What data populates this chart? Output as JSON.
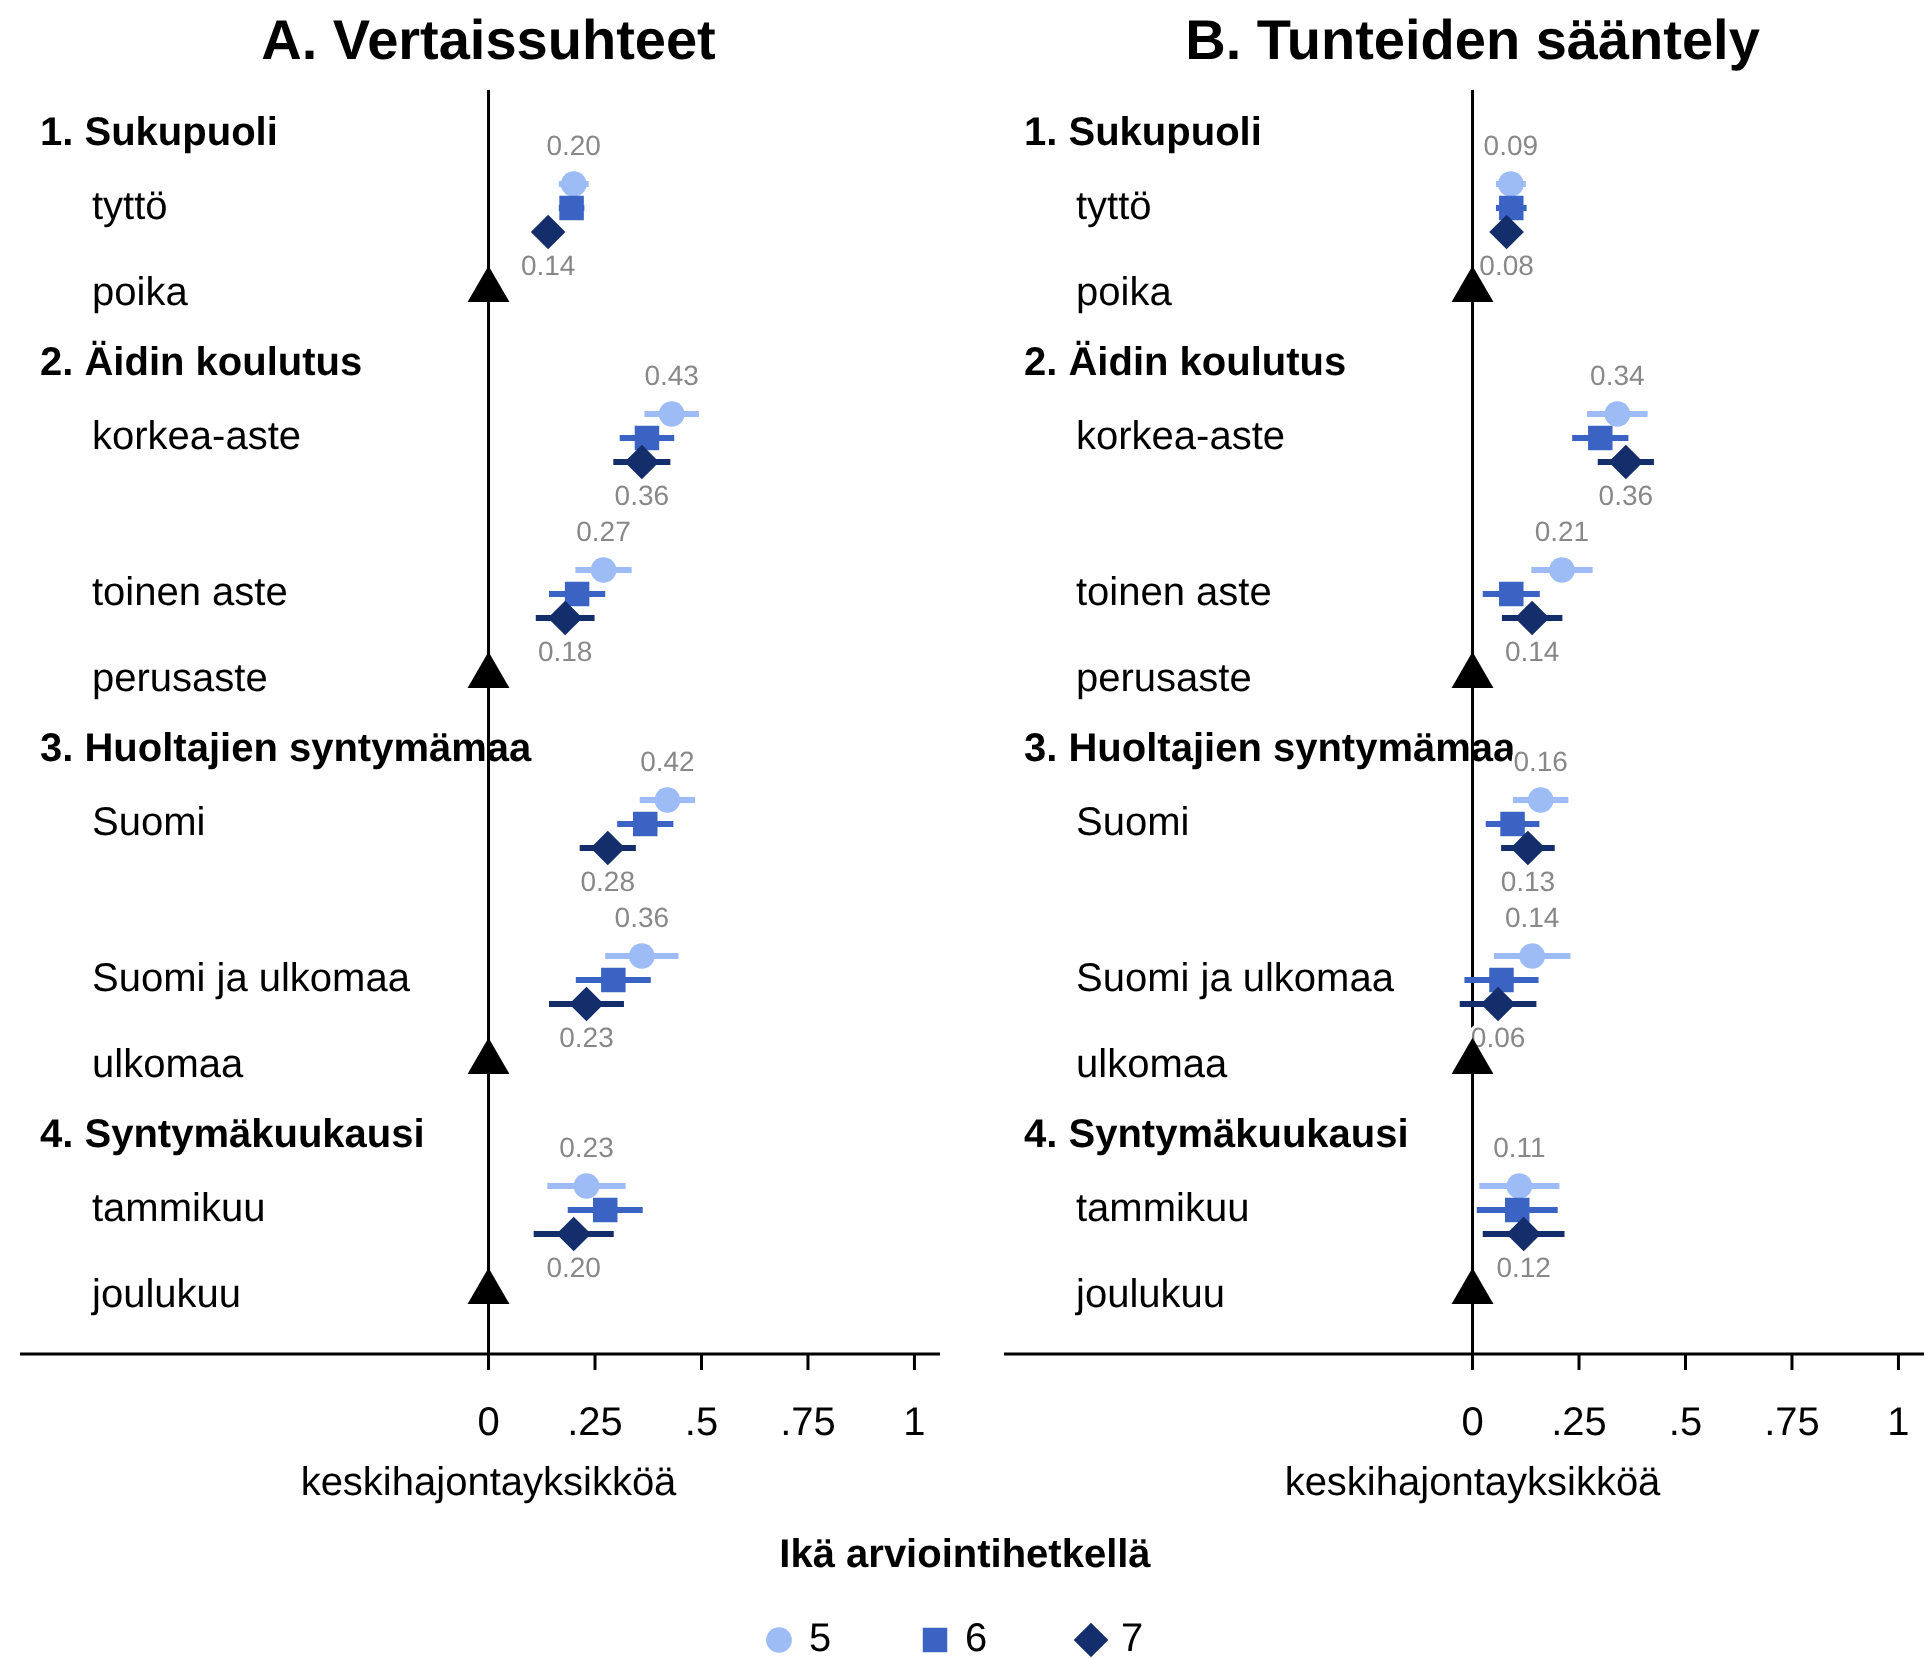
{
  "chart_data": [
    {
      "type": "scatter",
      "title": "A. Vertaissuhteet",
      "xlabel": "keskihajontayksikköä",
      "orientation": "horizontal",
      "legend": "bottom",
      "legend_title": "Ikä arviointihetkellä",
      "categories": [
        "1. Sukupuoli",
        "tyttö",
        "poika",
        "2. Äidin koulutus",
        "korkea-aste",
        "toinen aste",
        "perusaste",
        "3. Huoltajien syntymämaa",
        "Suomi",
        "Suomi ja ulkomaa",
        "ulkomaa",
        "4. Syntymäkuukausi",
        "tammikuu",
        "joulukuu"
      ],
      "xlim": [
        -1.1,
        1.06
      ],
      "xticks": [
        {
          "value": 0,
          "label": "0"
        },
        {
          "value": 0.25,
          "label": ".25"
        },
        {
          "value": 0.5,
          "label": ".5"
        },
        {
          "value": 0.75,
          "label": ".75"
        },
        {
          "value": 1,
          "label": "1"
        }
      ],
      "series": [
        {
          "name": "5",
          "color": "#9dbcf5",
          "marker": "circle",
          "values": [
            null,
            0.2,
            null,
            null,
            0.43,
            0.27,
            null,
            null,
            0.42,
            0.36,
            null,
            null,
            0.23,
            null
          ],
          "errors": [
            null,
            0.035,
            null,
            null,
            0.064,
            0.066,
            null,
            null,
            0.065,
            0.086,
            null,
            null,
            0.092,
            null
          ],
          "value_labels": [
            null,
            "0.20",
            null,
            null,
            "0.43",
            "0.27",
            null,
            null,
            "0.42",
            "0.36",
            null,
            null,
            "0.23",
            null
          ]
        },
        {
          "name": "6",
          "color": "#3a63c4",
          "marker": "square",
          "values": [
            null,
            0.195,
            null,
            null,
            0.372,
            0.208,
            null,
            null,
            0.368,
            0.293,
            null,
            null,
            0.274,
            null
          ],
          "errors": [
            null,
            0.03,
            null,
            null,
            0.064,
            0.066,
            null,
            null,
            0.066,
            0.088,
            null,
            null,
            0.088,
            null
          ]
        },
        {
          "name": "7",
          "color": "#142d6b",
          "marker": "diamond",
          "values": [
            null,
            0.14,
            null,
            null,
            0.36,
            0.18,
            null,
            null,
            0.28,
            0.23,
            null,
            null,
            0.2,
            null
          ],
          "errors": [
            null,
            0.02,
            null,
            null,
            0.067,
            0.069,
            null,
            null,
            0.066,
            0.088,
            null,
            null,
            0.094,
            null
          ],
          "value_labels": [
            null,
            "0.14",
            null,
            null,
            "0.36",
            "0.18",
            null,
            null,
            "0.28",
            "0.23",
            null,
            null,
            "0.20",
            null
          ]
        },
        {
          "color": "#000000",
          "marker": "triangle",
          "values": [
            null,
            null,
            0,
            null,
            null,
            null,
            0,
            null,
            null,
            null,
            0,
            null,
            null,
            0
          ]
        }
      ]
    },
    {
      "type": "scatter",
      "title": "B. Tunteiden sääntely",
      "xlabel": "keskihajontayksikköä",
      "orientation": "horizontal",
      "legend": "bottom",
      "categories": [
        "1. Sukupuoli",
        "tyttö",
        "poika",
        "2. Äidin koulutus",
        "korkea-aste",
        "toinen aste",
        "perusaste",
        "3. Huoltajien syntymämaa",
        "Suomi",
        "Suomi ja ulkomaa",
        "ulkomaa",
        "4. Syntymäkuukausi",
        "tammikuu",
        "joulukuu"
      ],
      "xlim": [
        -1.1,
        1.06
      ],
      "xticks": [
        0,
        {
          "value": 0.25,
          "label": ".25"
        },
        {
          "value": 0.5,
          "label": ".5"
        },
        {
          "value": 0.75,
          "label": ".75"
        },
        1
      ],
      "series": [
        {
          "name": "5",
          "color": "#9dbcf5",
          "marker": "circle",
          "values": [
            null,
            0.09,
            null,
            null,
            0.34,
            0.21,
            null,
            null,
            0.16,
            0.14,
            null,
            null,
            0.11,
            null
          ],
          "errors": [
            null,
            0.035,
            null,
            null,
            0.071,
            0.072,
            null,
            null,
            0.065,
            0.09,
            null,
            null,
            0.094,
            null
          ],
          "value_labels": [
            null,
            "0.09",
            null,
            null,
            "0.34",
            "0.21",
            null,
            null,
            "0.16",
            "0.14",
            null,
            null,
            "0.11",
            null
          ]
        },
        {
          "name": "6",
          "color": "#3a63c4",
          "marker": "square",
          "values": [
            null,
            0.091,
            null,
            null,
            0.3,
            0.091,
            null,
            null,
            0.094,
            0.068,
            null,
            null,
            0.105,
            null
          ],
          "errors": [
            null,
            0.036,
            null,
            null,
            0.066,
            0.067,
            null,
            null,
            0.063,
            0.087,
            null,
            null,
            0.095,
            null
          ]
        },
        {
          "name": "7",
          "color": "#142d6b",
          "marker": "diamond",
          "values": [
            null,
            0.08,
            null,
            null,
            0.36,
            0.14,
            null,
            null,
            0.13,
            0.06,
            null,
            null,
            0.12,
            null
          ],
          "errors": [
            null,
            0.02,
            null,
            null,
            0.066,
            0.071,
            null,
            null,
            0.063,
            0.09,
            null,
            null,
            0.096,
            null
          ],
          "value_labels": [
            null,
            "0.08",
            null,
            null,
            "0.36",
            "0.14",
            null,
            null,
            "0.13",
            "0.06",
            null,
            null,
            "0.12",
            null
          ]
        },
        {
          "color": "#000000",
          "marker": "triangle",
          "values": [
            null,
            null,
            0,
            null,
            null,
            null,
            0,
            null,
            null,
            null,
            0,
            null,
            null,
            0
          ]
        }
      ]
    }
  ]
}
